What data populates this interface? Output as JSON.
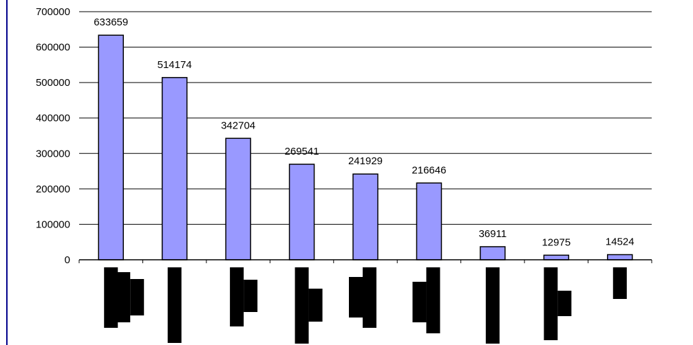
{
  "chart_data": {
    "type": "bar",
    "title": "",
    "xlabel": "",
    "ylabel": "",
    "categories": [
      "",
      "",
      "",
      "",
      "",
      "",
      "",
      "",
      ""
    ],
    "values": [
      633659,
      514174,
      342704,
      269541,
      241929,
      216646,
      36911,
      12975,
      14524
    ],
    "data_labels": [
      "633659",
      "514174",
      "342704",
      "269541",
      "241929",
      "216646",
      "36911",
      "12975",
      "14524"
    ],
    "ylim": [
      0,
      700000
    ],
    "yticks": [
      0,
      100000,
      200000,
      300000,
      400000,
      500000,
      600000,
      700000
    ],
    "ytick_labels": [
      "0",
      "100000",
      "200000",
      "300000",
      "400000",
      "500000",
      "600000",
      "700000"
    ],
    "grid": true,
    "legend": "none",
    "colors": {
      "bar_fill": "#9999ff",
      "bar_stroke": "#000000",
      "grid": "#000000",
      "border_left": "#00008b",
      "redaction": "#000000"
    }
  }
}
